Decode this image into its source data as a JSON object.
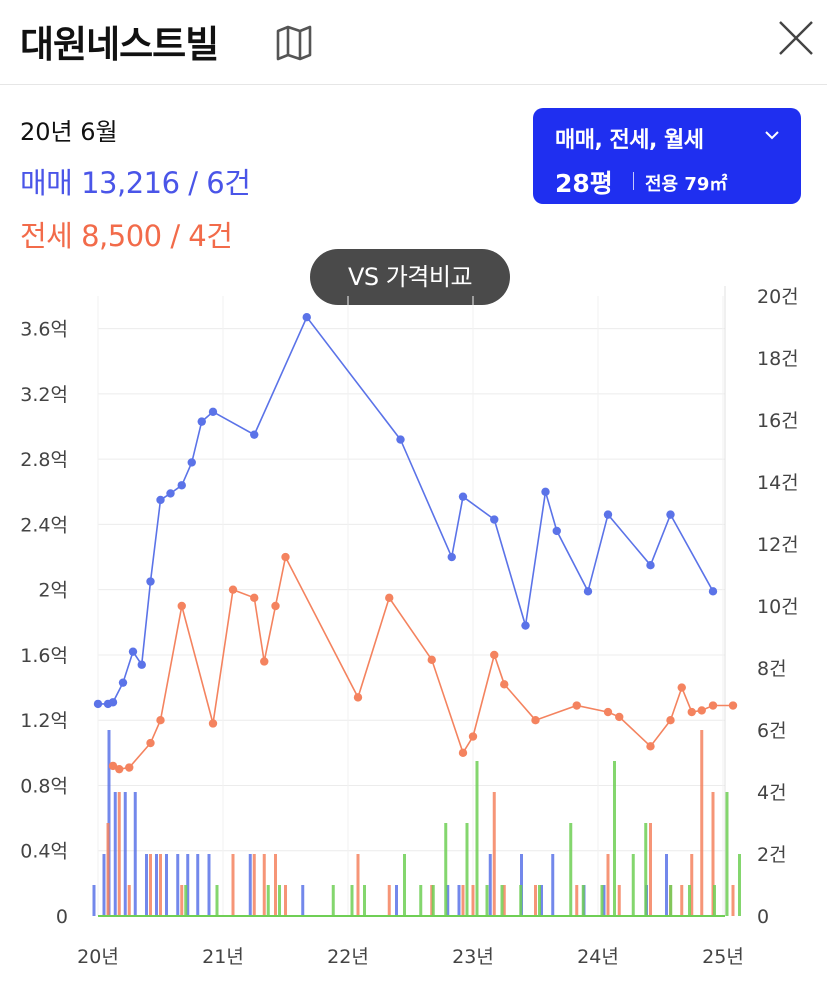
{
  "header": {
    "title": "대원네스트빌",
    "map_icon": "map-icon",
    "close_icon": "close-icon"
  },
  "summary": {
    "period": "20년 6월",
    "sale": "매매 13,216 / 6건",
    "jeonse": "전세 8,500 / 4건"
  },
  "filter": {
    "types": "매매, 전세, 월세",
    "size": "28평",
    "area": "전용 79㎡"
  },
  "compare_button": "VS 가격비교",
  "colors": {
    "sale": "#5b73e8",
    "jeonse": "#f4835f",
    "monthly": "#6fcf55",
    "filter_bg": "#1f2ff0"
  },
  "chart_data": {
    "type": "line",
    "x_ticks": [
      "20년",
      "21년",
      "22년",
      "23년",
      "24년",
      "25년"
    ],
    "y_left_ticks": [
      "0",
      "0.4억",
      "0.8억",
      "1.2억",
      "1.6억",
      "2억",
      "2.4억",
      "2.8억",
      "3.2억",
      "3.6억"
    ],
    "y_right_ticks": [
      "0",
      "2건",
      "4건",
      "6건",
      "8건",
      "10건",
      "12건",
      "14건",
      "16건",
      "18건",
      "20건"
    ],
    "ylim_left": [
      0,
      3.8
    ],
    "ylim_right": [
      0,
      20
    ],
    "grid": true,
    "series": [
      {
        "key": "sale",
        "unit": "억",
        "points": [
          [
            2020.0,
            1.3
          ],
          [
            2020.08,
            1.3
          ],
          [
            2020.12,
            1.31
          ],
          [
            2020.2,
            1.43
          ],
          [
            2020.28,
            1.62
          ],
          [
            2020.35,
            1.54
          ],
          [
            2020.42,
            2.05
          ],
          [
            2020.5,
            2.55
          ],
          [
            2020.58,
            2.59
          ],
          [
            2020.67,
            2.64
          ],
          [
            2020.75,
            2.78
          ],
          [
            2020.83,
            3.03
          ],
          [
            2020.92,
            3.09
          ],
          [
            2021.25,
            2.95
          ],
          [
            2021.67,
            3.67
          ],
          [
            2022.42,
            2.92
          ],
          [
            2022.83,
            2.2
          ],
          [
            2022.92,
            2.57
          ],
          [
            2023.17,
            2.43
          ],
          [
            2023.42,
            1.78
          ],
          [
            2023.58,
            2.6
          ],
          [
            2023.67,
            2.36
          ],
          [
            2023.92,
            1.99
          ],
          [
            2024.08,
            2.46
          ],
          [
            2024.42,
            2.15
          ],
          [
            2024.58,
            2.46
          ],
          [
            2024.92,
            1.99
          ]
        ]
      },
      {
        "key": "jeonse",
        "unit": "억",
        "points": [
          [
            2020.12,
            0.92
          ],
          [
            2020.17,
            0.9
          ],
          [
            2020.25,
            0.91
          ],
          [
            2020.42,
            1.06
          ],
          [
            2020.5,
            1.2
          ],
          [
            2020.67,
            1.9
          ],
          [
            2020.92,
            1.18
          ],
          [
            2021.08,
            2.0
          ],
          [
            2021.25,
            1.95
          ],
          [
            2021.33,
            1.56
          ],
          [
            2021.42,
            1.9
          ],
          [
            2021.5,
            2.2
          ],
          [
            2022.08,
            1.34
          ],
          [
            2022.33,
            1.95
          ],
          [
            2022.67,
            1.57
          ],
          [
            2022.92,
            1.0
          ],
          [
            2023.0,
            1.1
          ],
          [
            2023.17,
            1.6
          ],
          [
            2023.25,
            1.42
          ],
          [
            2023.5,
            1.2
          ],
          [
            2023.83,
            1.29
          ],
          [
            2024.08,
            1.25
          ],
          [
            2024.17,
            1.22
          ],
          [
            2024.42,
            1.04
          ],
          [
            2024.58,
            1.2
          ],
          [
            2024.67,
            1.4
          ],
          [
            2024.75,
            1.25
          ],
          [
            2024.83,
            1.26
          ],
          [
            2024.92,
            1.29
          ],
          [
            2025.08,
            1.29
          ]
        ]
      },
      {
        "key": "sale_volume",
        "unit": "건",
        "bars": [
          [
            2020.0,
            1
          ],
          [
            2020.08,
            2
          ],
          [
            2020.12,
            6
          ],
          [
            2020.17,
            4
          ],
          [
            2020.25,
            4
          ],
          [
            2020.33,
            4
          ],
          [
            2020.42,
            2
          ],
          [
            2020.5,
            2
          ],
          [
            2020.58,
            2
          ],
          [
            2020.67,
            2
          ],
          [
            2020.75,
            2
          ],
          [
            2020.83,
            2
          ],
          [
            2020.92,
            2
          ],
          [
            2021.25,
            2
          ],
          [
            2021.67,
            1
          ],
          [
            2022.42,
            1
          ],
          [
            2022.83,
            1
          ],
          [
            2022.92,
            1
          ],
          [
            2023.17,
            2
          ],
          [
            2023.42,
            2
          ],
          [
            2023.58,
            1
          ],
          [
            2023.67,
            2
          ],
          [
            2023.92,
            1
          ],
          [
            2024.08,
            1
          ],
          [
            2024.42,
            1
          ],
          [
            2024.58,
            2
          ]
        ]
      },
      {
        "key": "jeonse_volume",
        "unit": "건",
        "bars": [
          [
            2020.08,
            3
          ],
          [
            2020.17,
            4
          ],
          [
            2020.25,
            1
          ],
          [
            2020.42,
            2
          ],
          [
            2020.5,
            2
          ],
          [
            2020.67,
            1
          ],
          [
            2021.08,
            2
          ],
          [
            2021.25,
            2
          ],
          [
            2021.33,
            2
          ],
          [
            2021.42,
            2
          ],
          [
            2021.5,
            1
          ],
          [
            2022.08,
            2
          ],
          [
            2022.33,
            1
          ],
          [
            2022.67,
            1
          ],
          [
            2022.92,
            1
          ],
          [
            2023.0,
            1
          ],
          [
            2023.17,
            4
          ],
          [
            2023.25,
            1
          ],
          [
            2023.5,
            1
          ],
          [
            2023.83,
            1
          ],
          [
            2024.08,
            2
          ],
          [
            2024.17,
            1
          ],
          [
            2024.42,
            3
          ],
          [
            2024.58,
            1
          ],
          [
            2024.67,
            1
          ],
          [
            2024.75,
            2
          ],
          [
            2024.83,
            6
          ],
          [
            2024.92,
            4
          ],
          [
            2025.08,
            1
          ]
        ]
      },
      {
        "key": "monthly_volume",
        "unit": "건",
        "bars": [
          [
            2020.67,
            1
          ],
          [
            2020.92,
            1
          ],
          [
            2021.33,
            1
          ],
          [
            2021.42,
            1
          ],
          [
            2021.85,
            1
          ],
          [
            2022.0,
            1
          ],
          [
            2022.1,
            1
          ],
          [
            2022.42,
            2
          ],
          [
            2022.55,
            1
          ],
          [
            2022.65,
            1
          ],
          [
            2022.75,
            3
          ],
          [
            2022.92,
            3
          ],
          [
            2023.0,
            5
          ],
          [
            2023.08,
            1
          ],
          [
            2023.2,
            1
          ],
          [
            2023.35,
            1
          ],
          [
            2023.5,
            1
          ],
          [
            2023.75,
            3
          ],
          [
            2023.85,
            1
          ],
          [
            2024.0,
            1
          ],
          [
            2024.1,
            5
          ],
          [
            2024.25,
            2
          ],
          [
            2024.35,
            3
          ],
          [
            2024.55,
            1
          ],
          [
            2024.7,
            1
          ],
          [
            2024.9,
            1
          ],
          [
            2025.0,
            4
          ],
          [
            2025.1,
            2
          ]
        ]
      }
    ]
  }
}
